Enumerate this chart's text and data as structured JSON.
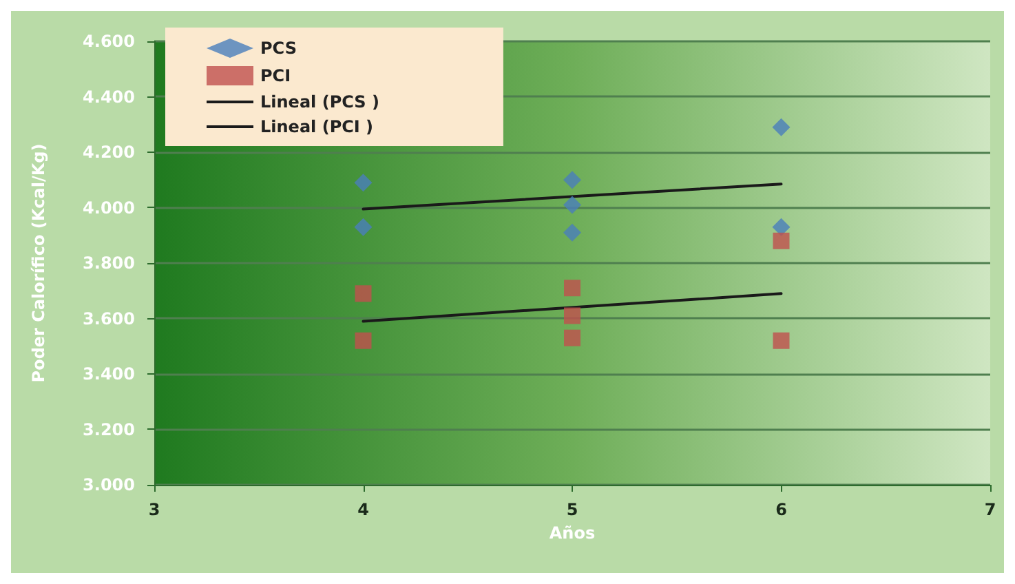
{
  "chart_data": {
    "type": "scatter",
    "xlabel": "Años",
    "ylabel": "Poder Calorífico (Kcal/Kg)",
    "xlim": [
      3,
      7
    ],
    "xticks": [
      3,
      4,
      5,
      6,
      7
    ],
    "ylim": [
      3,
      4.6
    ],
    "yticks": [
      {
        "value": 3,
        "label": "3.000"
      },
      {
        "value": 3.2,
        "label": "3.200"
      },
      {
        "value": 3.4,
        "label": "3.400"
      },
      {
        "value": 3.6,
        "label": "3.600"
      },
      {
        "value": 3.8,
        "label": "3.800"
      },
      {
        "value": 4,
        "label": "4.000"
      },
      {
        "value": 4.2,
        "label": "4.200"
      },
      {
        "value": 4.4,
        "label": "4.400"
      },
      {
        "value": 4.6,
        "label": "4.600"
      }
    ],
    "grid": "y",
    "legend": "top left",
    "series": [
      {
        "name": "PCS",
        "marker": "diamond",
        "color": "#4a7ebb",
        "x": [
          4,
          4,
          5,
          5,
          5,
          6,
          6
        ],
        "values": [
          4.09,
          3.93,
          4.1,
          4.01,
          3.91,
          4.29,
          3.93
        ]
      },
      {
        "name": "PCI",
        "marker": "square",
        "color": "#c0504d",
        "x": [
          4,
          4,
          5,
          5,
          5,
          6,
          6
        ],
        "values": [
          3.69,
          3.52,
          3.71,
          3.61,
          3.53,
          3.88,
          3.52
        ]
      },
      {
        "name": "Lineal (PCS )",
        "type": "line",
        "marker": "none",
        "line_style": "solid",
        "color": "#1a1a1a",
        "x": [
          4,
          6
        ],
        "values": [
          3.995,
          4.085
        ]
      },
      {
        "name": "Lineal (PCI )",
        "type": "line",
        "marker": "none",
        "line_style": "solid",
        "color": "#1a1a1a",
        "x": [
          4,
          6
        ],
        "values": [
          3.59,
          3.69
        ]
      }
    ]
  }
}
